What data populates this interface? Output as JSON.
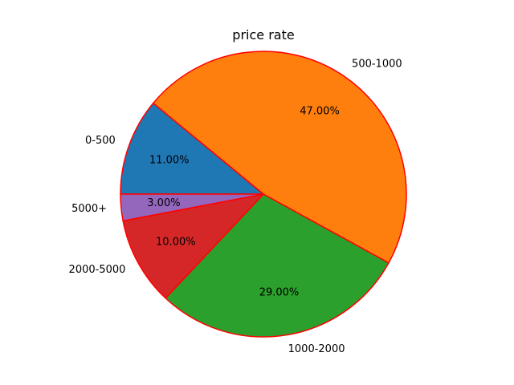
{
  "chart_data": {
    "type": "pie",
    "title": "price rate",
    "slices": [
      {
        "label": "0-500",
        "value": 11.0,
        "pct_label": "11.00%",
        "color": "#1f77b4"
      },
      {
        "label": "500-1000",
        "value": 47.0,
        "pct_label": "47.00%",
        "color": "#ff7f0e"
      },
      {
        "label": "1000-2000",
        "value": 29.0,
        "pct_label": "29.00%",
        "color": "#2ca02c"
      },
      {
        "label": "2000-5000",
        "value": 10.0,
        "pct_label": "10.00%",
        "color": "#d62728"
      },
      {
        "label": "5000+",
        "value": 3.0,
        "pct_label": "3.00%",
        "color": "#9467bd"
      }
    ],
    "start_angle_deg": 180,
    "direction": "clockwise",
    "edge_color": "#ff0000"
  }
}
